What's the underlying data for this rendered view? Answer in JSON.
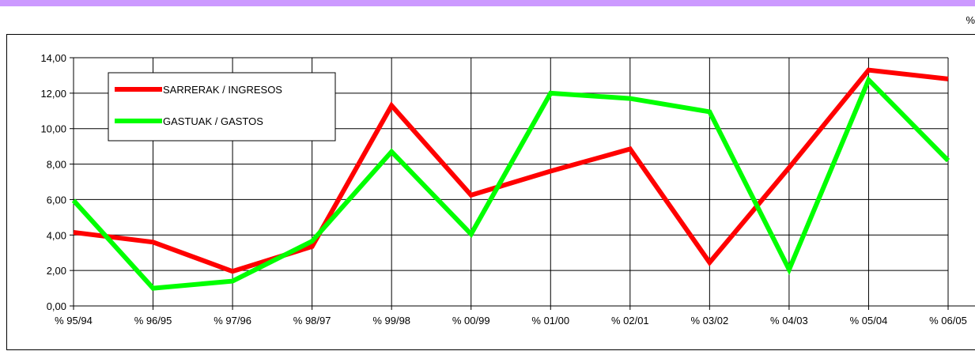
{
  "chart_data": {
    "type": "line",
    "unit": "%",
    "categories": [
      "% 95/94",
      "% 96/95",
      "% 97/96",
      "% 98/97",
      "% 99/98",
      "% 00/99",
      "% 01/00",
      "% 02/01",
      "% 03/02",
      "% 04/03",
      "% 05/04",
      "% 06/05"
    ],
    "y_ticks": [
      "0,00",
      "2,00",
      "4,00",
      "6,00",
      "8,00",
      "10,00",
      "12,00",
      "14,00"
    ],
    "ylim": [
      0,
      14
    ],
    "grid": true,
    "legend_position": "top-left",
    "series": [
      {
        "name": "SARRERAK / INGRESOS",
        "color": "#ff0000",
        "values": [
          4.15,
          3.6,
          1.95,
          3.35,
          11.3,
          6.25,
          7.6,
          8.85,
          2.45,
          7.8,
          13.3,
          12.8
        ]
      },
      {
        "name": "GASTUAK / GASTOS",
        "color": "#00ff00",
        "values": [
          5.95,
          1.0,
          1.4,
          3.65,
          8.7,
          4.05,
          12.0,
          11.7,
          10.95,
          2.05,
          12.75,
          8.2
        ]
      }
    ]
  }
}
